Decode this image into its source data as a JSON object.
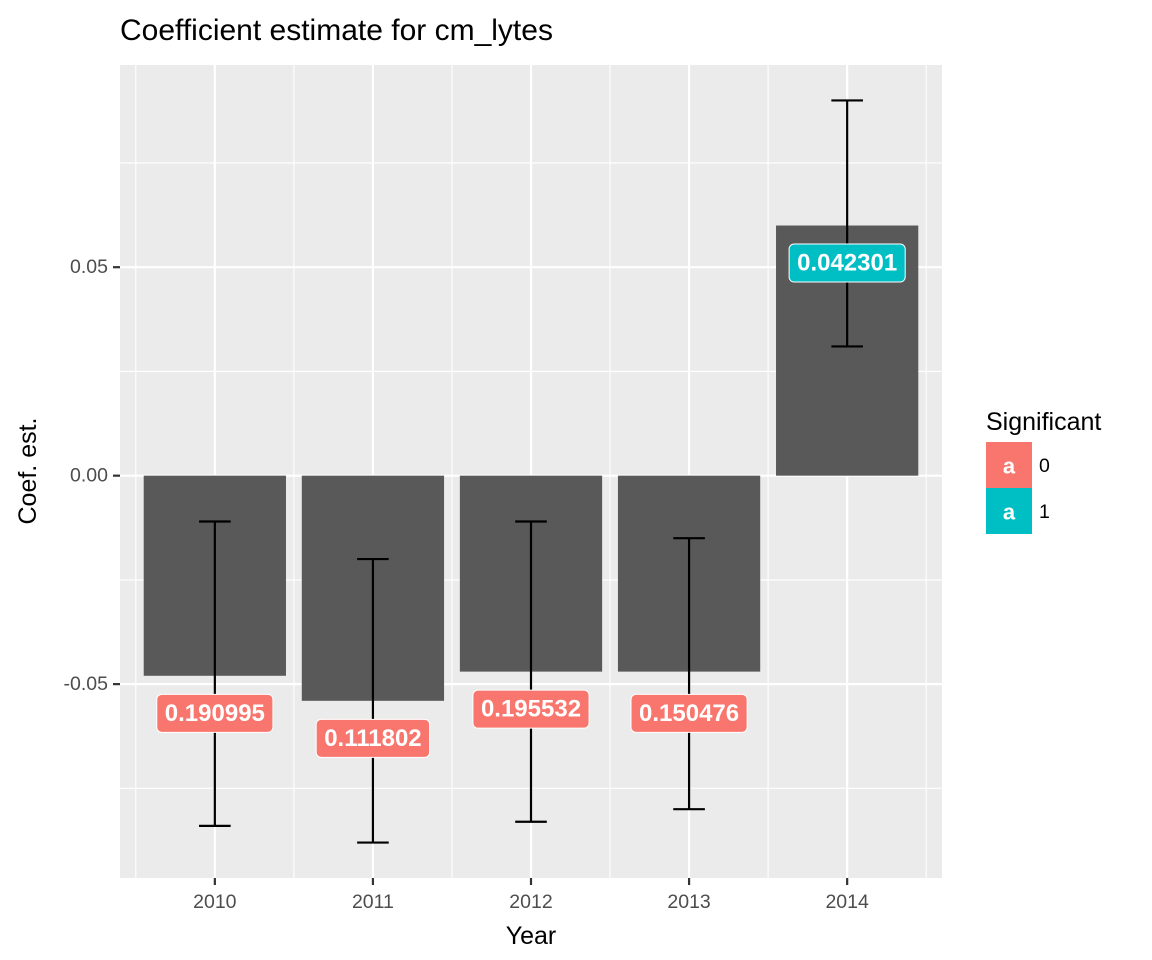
{
  "chart_data": {
    "type": "bar",
    "title": "Coefficient estimate for cm_lytes",
    "xlabel": "Year",
    "ylabel": "Coef. est.",
    "categories": [
      "2010",
      "2011",
      "2012",
      "2013",
      "2014"
    ],
    "values": [
      -0.048,
      -0.054,
      -0.047,
      -0.047,
      0.06
    ],
    "error_bars": {
      "lower": [
        -0.084,
        -0.088,
        -0.083,
        -0.08,
        0.031
      ],
      "upper": [
        -0.011,
        -0.02,
        -0.011,
        -0.015,
        0.09
      ]
    },
    "labels": [
      {
        "text": "0.190995",
        "y": -0.057,
        "significant": "0"
      },
      {
        "text": "0.111802",
        "y": -0.063,
        "significant": "0"
      },
      {
        "text": "0.195532",
        "y": -0.056,
        "significant": "0"
      },
      {
        "text": "0.150476",
        "y": -0.057,
        "significant": "0"
      },
      {
        "text": "0.042301",
        "y": 0.051,
        "significant": "1"
      }
    ],
    "ylim": [
      -0.0965,
      0.0985
    ],
    "yticks": [
      -0.05,
      0.0,
      0.05
    ],
    "ytick_labels": [
      "-0.05",
      "0.00",
      "0.05"
    ],
    "grid": true,
    "legend": {
      "title": "Significant",
      "position": "right",
      "glyph": "a",
      "entries": [
        {
          "label": "0",
          "color": "#F8766D"
        },
        {
          "label": "1",
          "color": "#00BFC4"
        }
      ]
    },
    "colors": {
      "bar": "#595959",
      "panel": "#EBEBEB",
      "grid": "#FFFFFF",
      "errorbar": "#000000"
    }
  }
}
